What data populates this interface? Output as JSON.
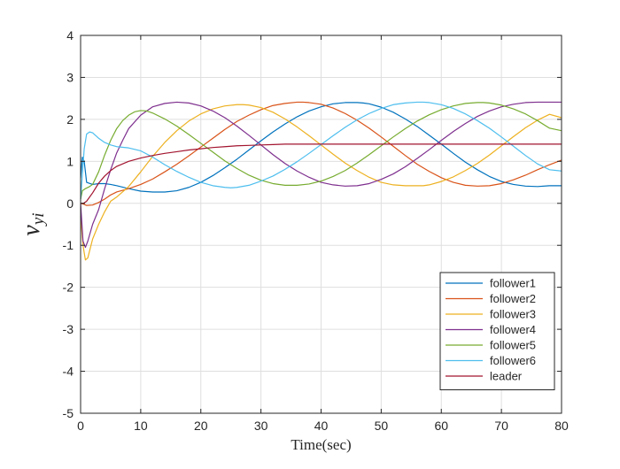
{
  "chart_data": {
    "type": "line",
    "xlabel": "Time(sec)",
    "ylabel": "v",
    "ylabel_sub": "yi",
    "xlim": [
      0,
      80
    ],
    "ylim": [
      -5,
      4
    ],
    "xticks": [
      0,
      10,
      20,
      30,
      40,
      50,
      60,
      70,
      80
    ],
    "yticks": [
      -5,
      -4,
      -3,
      -2,
      -1,
      0,
      1,
      2,
      3,
      4
    ],
    "grid": true,
    "legend_position": "bottom-right",
    "series": [
      {
        "name": "follower1",
        "color": "#0072BD",
        "x": [
          0,
          0.3,
          0.6,
          1,
          2,
          3,
          4,
          5,
          6,
          8,
          10,
          12,
          14,
          16,
          18,
          20,
          22,
          24,
          26,
          28,
          30,
          32,
          34,
          36,
          38,
          40,
          42,
          44,
          46,
          47,
          48,
          50,
          52,
          54,
          56,
          58,
          60,
          62,
          64,
          66,
          68,
          70,
          72,
          74,
          76,
          78,
          79,
          80
        ],
        "y": [
          0.6,
          1.1,
          1.0,
          0.5,
          0.45,
          0.47,
          0.47,
          0.45,
          0.42,
          0.35,
          0.29,
          0.27,
          0.27,
          0.3,
          0.38,
          0.5,
          0.66,
          0.85,
          1.05,
          1.27,
          1.49,
          1.7,
          1.89,
          2.06,
          2.2,
          2.3,
          2.37,
          2.4,
          2.4,
          2.39,
          2.37,
          2.29,
          2.17,
          2.01,
          1.83,
          1.62,
          1.41,
          1.19,
          0.98,
          0.8,
          0.64,
          0.52,
          0.45,
          0.41,
          0.4,
          0.42,
          0.42,
          0.42
        ]
      },
      {
        "name": "follower2",
        "color": "#D95319",
        "x": [
          0,
          0.5,
          1,
          2,
          3,
          4,
          5,
          6,
          8,
          10,
          12,
          14,
          16,
          18,
          20,
          22,
          24,
          26,
          28,
          30,
          32,
          34,
          36,
          37,
          38,
          40,
          42,
          44,
          46,
          48,
          50,
          52,
          54,
          56,
          58,
          60,
          62,
          64,
          66,
          68,
          70,
          72,
          74,
          76,
          78,
          80
        ],
        "y": [
          0,
          -0.02,
          -0.05,
          -0.04,
          0.02,
          0.1,
          0.2,
          0.27,
          0.35,
          0.45,
          0.58,
          0.75,
          0.93,
          1.13,
          1.34,
          1.55,
          1.76,
          1.95,
          2.1,
          2.23,
          2.33,
          2.38,
          2.41,
          2.41,
          2.4,
          2.36,
          2.27,
          2.14,
          1.98,
          1.79,
          1.58,
          1.36,
          1.14,
          0.93,
          0.76,
          0.61,
          0.5,
          0.43,
          0.41,
          0.42,
          0.47,
          0.56,
          0.67,
          0.8,
          0.92,
          1.03
        ]
      },
      {
        "name": "follower3",
        "color": "#EDB120",
        "x": [
          0,
          0.4,
          0.8,
          1.2,
          2,
          3,
          4,
          5,
          6,
          8,
          10,
          12,
          14,
          16,
          18,
          20,
          22,
          24,
          26,
          27,
          28,
          30,
          32,
          34,
          36,
          38,
          40,
          42,
          44,
          46,
          48,
          50,
          52,
          54,
          56,
          57,
          58,
          60,
          62,
          64,
          66,
          68,
          70,
          72,
          74,
          76,
          78,
          80
        ],
        "y": [
          -0.3,
          -1.0,
          -1.35,
          -1.3,
          -0.85,
          -0.5,
          -0.2,
          0.05,
          0.15,
          0.4,
          0.75,
          1.12,
          1.45,
          1.73,
          1.96,
          2.13,
          2.25,
          2.32,
          2.35,
          2.35,
          2.34,
          2.28,
          2.17,
          2.01,
          1.82,
          1.61,
          1.39,
          1.17,
          0.96,
          0.78,
          0.62,
          0.5,
          0.44,
          0.42,
          0.42,
          0.42,
          0.44,
          0.52,
          0.63,
          0.78,
          0.95,
          1.15,
          1.37,
          1.59,
          1.8,
          1.98,
          2.12,
          2.04
        ]
      },
      {
        "name": "follower4",
        "color": "#7E2F8E",
        "x": [
          0,
          0.4,
          0.8,
          1.2,
          2,
          3,
          4,
          5,
          6,
          7,
          8,
          10,
          12,
          14,
          16,
          18,
          20,
          22,
          24,
          26,
          28,
          30,
          32,
          34,
          36,
          38,
          40,
          42,
          44,
          46,
          48,
          50,
          52,
          54,
          56,
          58,
          60,
          62,
          64,
          66,
          68,
          70,
          72,
          74,
          76,
          77,
          78,
          80
        ],
        "y": [
          0,
          -0.9,
          -1.05,
          -0.9,
          -0.5,
          -0.15,
          0.35,
          0.8,
          1.2,
          1.5,
          1.78,
          2.1,
          2.3,
          2.38,
          2.41,
          2.39,
          2.32,
          2.2,
          2.04,
          1.84,
          1.62,
          1.39,
          1.16,
          0.95,
          0.77,
          0.62,
          0.5,
          0.44,
          0.41,
          0.42,
          0.47,
          0.57,
          0.7,
          0.87,
          1.07,
          1.28,
          1.5,
          1.71,
          1.9,
          2.07,
          2.2,
          2.3,
          2.36,
          2.4,
          2.41,
          2.41,
          2.41,
          2.41
        ]
      },
      {
        "name": "follower5",
        "color": "#77AC30",
        "x": [
          0,
          0.3,
          0.8,
          1.5,
          2,
          3,
          4,
          5,
          6,
          7,
          8,
          9,
          10,
          11,
          12,
          14,
          16,
          18,
          20,
          22,
          24,
          26,
          28,
          30,
          32,
          34,
          36,
          38,
          40,
          42,
          44,
          46,
          48,
          50,
          52,
          54,
          56,
          58,
          60,
          62,
          64,
          66,
          67,
          68,
          70,
          72,
          74,
          76,
          78,
          80
        ],
        "y": [
          0.1,
          0.3,
          0.35,
          0.4,
          0.45,
          0.75,
          1.15,
          1.5,
          1.78,
          1.97,
          2.1,
          2.18,
          2.21,
          2.2,
          2.15,
          2.01,
          1.84,
          1.64,
          1.43,
          1.22,
          1.01,
          0.83,
          0.67,
          0.55,
          0.47,
          0.43,
          0.43,
          0.46,
          0.53,
          0.64,
          0.78,
          0.96,
          1.16,
          1.37,
          1.58,
          1.78,
          1.96,
          2.11,
          2.23,
          2.32,
          2.38,
          2.4,
          2.4,
          2.39,
          2.34,
          2.25,
          2.13,
          1.97,
          1.79,
          1.73
        ]
      },
      {
        "name": "follower6",
        "color": "#4DBEEE",
        "x": [
          0,
          0.3,
          0.6,
          1,
          1.5,
          2,
          3,
          4,
          5,
          6,
          8,
          10,
          12,
          14,
          16,
          18,
          20,
          22,
          24,
          25,
          26,
          28,
          30,
          32,
          34,
          36,
          38,
          40,
          42,
          44,
          46,
          48,
          50,
          52,
          54,
          56,
          57,
          58,
          60,
          62,
          64,
          66,
          68,
          70,
          72,
          74,
          76,
          78,
          80
        ],
        "y": [
          0.1,
          0.7,
          1.3,
          1.65,
          1.7,
          1.68,
          1.55,
          1.45,
          1.39,
          1.35,
          1.32,
          1.25,
          1.1,
          0.92,
          0.76,
          0.62,
          0.5,
          0.42,
          0.38,
          0.37,
          0.38,
          0.43,
          0.53,
          0.65,
          0.81,
          0.99,
          1.19,
          1.4,
          1.61,
          1.81,
          1.99,
          2.14,
          2.26,
          2.35,
          2.39,
          2.41,
          2.41,
          2.4,
          2.35,
          2.26,
          2.13,
          1.97,
          1.79,
          1.58,
          1.36,
          1.14,
          0.94,
          0.8,
          0.77
        ]
      },
      {
        "name": "leader",
        "color": "#A2142F",
        "x": [
          0,
          0.5,
          1,
          2,
          3,
          4,
          5,
          6,
          8,
          10,
          12,
          14,
          16,
          18,
          20,
          22,
          24,
          26,
          28,
          30,
          32,
          34,
          40,
          50,
          60,
          70,
          80
        ],
        "y": [
          0,
          0,
          0.05,
          0.25,
          0.48,
          0.65,
          0.78,
          0.88,
          1.0,
          1.08,
          1.14,
          1.19,
          1.23,
          1.27,
          1.3,
          1.33,
          1.35,
          1.37,
          1.38,
          1.39,
          1.4,
          1.41,
          1.41,
          1.41,
          1.41,
          1.41,
          1.41
        ]
      }
    ]
  }
}
